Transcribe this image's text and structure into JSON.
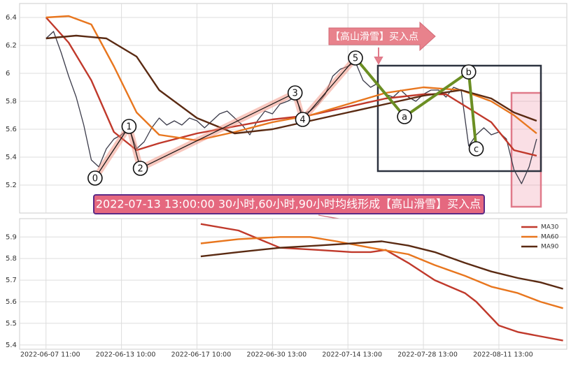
{
  "chart_data": [
    {
      "type": "line",
      "xlim": [
        -7,
        138
      ],
      "ylim": [
        5.0,
        6.5
      ],
      "xticks": [
        0,
        20,
        40,
        60,
        80,
        100,
        120
      ],
      "yticks": [
        5.2,
        5.4,
        5.6,
        5.8,
        6.0,
        6.2,
        6.4
      ],
      "grid": true,
      "series": [
        {
          "color": "#3b3b4a",
          "x": [
            0,
            2,
            4,
            6,
            8,
            10,
            12,
            14,
            16,
            18,
            20,
            22,
            24,
            26,
            28,
            30,
            32,
            34,
            36,
            38,
            40,
            42,
            44,
            46,
            48,
            50,
            52,
            54,
            56,
            58,
            60,
            62,
            64,
            66,
            68,
            70,
            72,
            74,
            76,
            78,
            80,
            82,
            84,
            86,
            88,
            90,
            92,
            94,
            96,
            98,
            100,
            102,
            104,
            106,
            108,
            110,
            112,
            114,
            116,
            118,
            120,
            122,
            124,
            126,
            128,
            130
          ],
          "values": [
            6.25,
            6.3,
            6.15,
            5.98,
            5.83,
            5.63,
            5.38,
            5.33,
            5.46,
            5.53,
            5.56,
            5.61,
            5.46,
            5.51,
            5.61,
            5.68,
            5.63,
            5.66,
            5.63,
            5.68,
            5.66,
            5.61,
            5.66,
            5.71,
            5.73,
            5.68,
            5.63,
            5.56,
            5.66,
            5.73,
            5.71,
            5.78,
            5.8,
            5.83,
            5.71,
            5.73,
            5.78,
            5.85,
            5.98,
            6.03,
            6.05,
            6.08,
            5.95,
            5.9,
            5.93,
            5.85,
            5.83,
            5.88,
            5.83,
            5.8,
            5.85,
            5.88,
            5.88,
            5.83,
            5.9,
            5.88,
            5.48,
            5.56,
            5.61,
            5.56,
            5.58,
            5.53,
            5.31,
            5.21,
            5.33,
            5.53
          ]
        },
        {
          "color": "#c0392b",
          "x": [
            0,
            6,
            12,
            18,
            24,
            30,
            40,
            50,
            60,
            70,
            80,
            90,
            100,
            106,
            112,
            118,
            124,
            130
          ],
          "values": [
            6.4,
            6.22,
            5.95,
            5.58,
            5.45,
            5.5,
            5.57,
            5.62,
            5.67,
            5.7,
            5.76,
            5.82,
            5.85,
            5.85,
            5.75,
            5.65,
            5.45,
            5.41
          ]
        },
        {
          "color": "#e8761e",
          "x": [
            0,
            6,
            12,
            18,
            24,
            30,
            40,
            50,
            60,
            70,
            80,
            90,
            100,
            110,
            118,
            124,
            130
          ],
          "values": [
            6.4,
            6.41,
            6.35,
            6.05,
            5.72,
            5.56,
            5.52,
            5.58,
            5.65,
            5.7,
            5.78,
            5.86,
            5.9,
            5.88,
            5.8,
            5.7,
            5.57
          ]
        },
        {
          "color": "#5a2a12",
          "x": [
            0,
            8,
            16,
            24,
            30,
            40,
            50,
            60,
            70,
            80,
            90,
            100,
            110,
            118,
            124,
            130
          ],
          "values": [
            6.25,
            6.27,
            6.25,
            6.12,
            5.88,
            5.68,
            5.57,
            5.6,
            5.66,
            5.72,
            5.78,
            5.84,
            5.88,
            5.82,
            5.72,
            5.66
          ]
        }
      ],
      "annotations": {
        "banner": "【高山滑雪】买入点",
        "signal": "2022-07-13 13:00:00 30小时,60小时,90小时均线形成【高山滑雪】买入点",
        "points": [
          {
            "label": "0",
            "x": 13,
            "y": 5.25
          },
          {
            "label": "1",
            "x": 22,
            "y": 5.62
          },
          {
            "label": "2",
            "x": 25,
            "y": 5.32
          },
          {
            "label": "3",
            "x": 66,
            "y": 5.86
          },
          {
            "label": "4",
            "x": 68,
            "y": 5.67
          },
          {
            "label": "5",
            "x": 82,
            "y": 6.11
          },
          {
            "label": "a",
            "x": 95,
            "y": 5.69
          },
          {
            "label": "b",
            "x": 112,
            "y": 6.01
          },
          {
            "label": "c",
            "x": 114,
            "y": 5.46
          }
        ]
      }
    },
    {
      "type": "line",
      "xlim": [
        -7,
        138
      ],
      "ylim": [
        5.38,
        5.985
      ],
      "xticks": [
        {
          "value": 0,
          "label": "2022-06-07 11:00"
        },
        {
          "value": 20,
          "label": "2022-06-13 10:00"
        },
        {
          "value": 40,
          "label": "2022-06-17 10:00"
        },
        {
          "value": 60,
          "label": "2022-06-30 13:00"
        },
        {
          "value": 80,
          "label": "2022-07-14 13:00"
        },
        {
          "value": 100,
          "label": "2022-07-28 13:00"
        },
        {
          "value": 120,
          "label": "2022-08-11 13:00"
        }
      ],
      "yticks": [
        5.4,
        5.5,
        5.6,
        5.7,
        5.8,
        5.9
      ],
      "grid": true,
      "legend": "upper right",
      "series": [
        {
          "name": "MA30",
          "color": "#c0392b",
          "x": [
            41,
            51,
            62,
            72,
            81,
            86,
            90,
            96,
            103,
            111,
            114,
            120,
            125,
            131,
            137
          ],
          "values": [
            5.96,
            5.93,
            5.85,
            5.84,
            5.83,
            5.83,
            5.84,
            5.78,
            5.7,
            5.64,
            5.6,
            5.49,
            5.46,
            5.44,
            5.42
          ]
        },
        {
          "name": "MA60",
          "color": "#e8761e",
          "x": [
            41,
            51,
            62,
            70,
            77,
            86,
            96,
            103,
            111,
            118,
            125,
            131,
            137
          ],
          "values": [
            5.87,
            5.89,
            5.9,
            5.9,
            5.88,
            5.85,
            5.82,
            5.77,
            5.72,
            5.67,
            5.64,
            5.6,
            5.57
          ]
        },
        {
          "name": "MA90",
          "color": "#5a2a12",
          "x": [
            41,
            51,
            62,
            72,
            81,
            89,
            96,
            103,
            111,
            118,
            125,
            131,
            137
          ],
          "values": [
            5.81,
            5.83,
            5.85,
            5.86,
            5.87,
            5.88,
            5.86,
            5.83,
            5.78,
            5.74,
            5.71,
            5.69,
            5.66
          ]
        }
      ]
    }
  ]
}
